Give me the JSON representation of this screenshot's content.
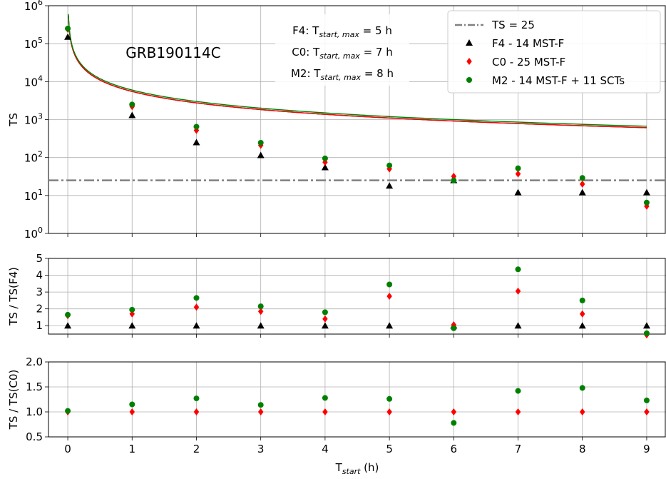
{
  "chart_data": [
    {
      "type": "scatter",
      "panel": "top",
      "annotation": "GRB190114C",
      "ylabel": "TS",
      "yscale": "log",
      "ylim": [
        1,
        1000000
      ],
      "xlim": [
        -0.3,
        9.3
      ],
      "yticks": [
        {
          "value": 1,
          "base": "10",
          "exp": "0"
        },
        {
          "value": 10,
          "base": "10",
          "exp": "1"
        },
        {
          "value": 100,
          "base": "10",
          "exp": "2"
        },
        {
          "value": 1000,
          "base": "10",
          "exp": "3"
        },
        {
          "value": 10000,
          "base": "10",
          "exp": "4"
        },
        {
          "value": 100000,
          "base": "10",
          "exp": "5"
        },
        {
          "value": 1000000,
          "base": "10",
          "exp": "6"
        }
      ],
      "grid": true,
      "legend_position": "top-right",
      "tmax_annotations": [
        {
          "prefix": "F4: T",
          "sub": "start, max",
          "suffix": " = 5 h"
        },
        {
          "prefix": "C0: T",
          "sub": "start, max",
          "suffix": " = 7 h"
        },
        {
          "prefix": "M2: T",
          "sub": "start, max",
          "suffix": " = 8 h"
        }
      ],
      "threshold": {
        "name": "TS = 25",
        "value": 25,
        "color": "#808080"
      },
      "series": [
        {
          "name": "F4 - 14 MST-F",
          "marker": "triangle",
          "color": "#000000",
          "x": [
            0,
            1,
            2,
            3,
            4,
            5,
            6,
            7,
            8,
            9
          ],
          "y": [
            150000,
            1300,
            250,
            115,
            55,
            18,
            25,
            12,
            12,
            12
          ]
        },
        {
          "name": "C0 - 25 MST-F",
          "marker": "diamond",
          "color": "#ff0000",
          "x": [
            0,
            1,
            2,
            3,
            4,
            5,
            6,
            7,
            8,
            9
          ],
          "y": [
            240000,
            2200,
            520,
            210,
            75,
            50,
            32,
            37,
            20,
            5.2
          ]
        },
        {
          "name": "M2 - 14 MST-F + 11 SCTs",
          "marker": "circle",
          "color": "#008000",
          "x": [
            0,
            1,
            2,
            3,
            4,
            5,
            6,
            7,
            8,
            9
          ],
          "y": [
            250000,
            2500,
            650,
            245,
            95,
            62,
            25,
            52,
            29,
            6.5
          ]
        }
      ],
      "fit_curves": [
        {
          "color": "#000000",
          "t0": 0.01,
          "ts0": 550000,
          "t_end": 9
        },
        {
          "color": "#ff0000",
          "t0": 0.01,
          "ts0": 550000,
          "t_end": 9
        },
        {
          "color": "#008000",
          "t0": 0.01,
          "ts0": 600000,
          "t_end": 9
        }
      ]
    },
    {
      "type": "scatter",
      "panel": "middle",
      "ylabel": "TS / TS(F4)",
      "ylim": [
        0.5,
        5
      ],
      "yticks": [
        "1",
        "2",
        "3",
        "4",
        "5"
      ],
      "grid": true,
      "series": [
        {
          "name": "F4 - 14 MST-F",
          "marker": "triangle",
          "color": "#000000",
          "x": [
            0,
            1,
            2,
            3,
            4,
            5,
            6,
            7,
            8,
            9
          ],
          "y": [
            1,
            1,
            1,
            1,
            1,
            1,
            1,
            1,
            1,
            1
          ]
        },
        {
          "name": "C0 - 25 MST-F",
          "marker": "diamond",
          "color": "#ff0000",
          "x": [
            0,
            1,
            2,
            3,
            4,
            5,
            6,
            7,
            8,
            9
          ],
          "y": [
            1.6,
            1.7,
            2.1,
            1.85,
            1.4,
            2.75,
            1.05,
            3.05,
            1.7,
            0.45
          ]
        },
        {
          "name": "M2 - 14 MST-F + 11 SCTs",
          "marker": "circle",
          "color": "#008000",
          "x": [
            0,
            1,
            2,
            3,
            4,
            5,
            6,
            7,
            8,
            9
          ],
          "y": [
            1.65,
            1.95,
            2.65,
            2.15,
            1.8,
            3.45,
            0.85,
            4.35,
            2.5,
            0.55
          ]
        }
      ]
    },
    {
      "type": "scatter",
      "panel": "bottom",
      "ylabel": "TS / TS(C0)",
      "ylim": [
        0.5,
        2.0
      ],
      "yticks": [
        "0.5",
        "1.0",
        "1.5",
        "2.0"
      ],
      "grid": true,
      "x_tick_labels": [
        "0",
        "1",
        "2",
        "3",
        "4",
        "5",
        "6",
        "7",
        "8",
        "9"
      ],
      "xlabel": {
        "prefix": "T",
        "sub": "start",
        "suffix": " (h)"
      },
      "series": [
        {
          "name": "C0 - 25 MST-F",
          "marker": "diamond",
          "color": "#ff0000",
          "x": [
            0,
            1,
            2,
            3,
            4,
            5,
            6,
            7,
            8,
            9
          ],
          "y": [
            1,
            1,
            1,
            1,
            1,
            1,
            1,
            1,
            1,
            1
          ]
        },
        {
          "name": "M2 - 14 MST-F + 11 SCTs",
          "marker": "circle",
          "color": "#008000",
          "x": [
            0,
            1,
            2,
            3,
            4,
            5,
            6,
            7,
            8,
            9
          ],
          "y": [
            1.02,
            1.15,
            1.27,
            1.14,
            1.28,
            1.26,
            0.78,
            1.42,
            1.48,
            1.23
          ]
        }
      ]
    }
  ]
}
